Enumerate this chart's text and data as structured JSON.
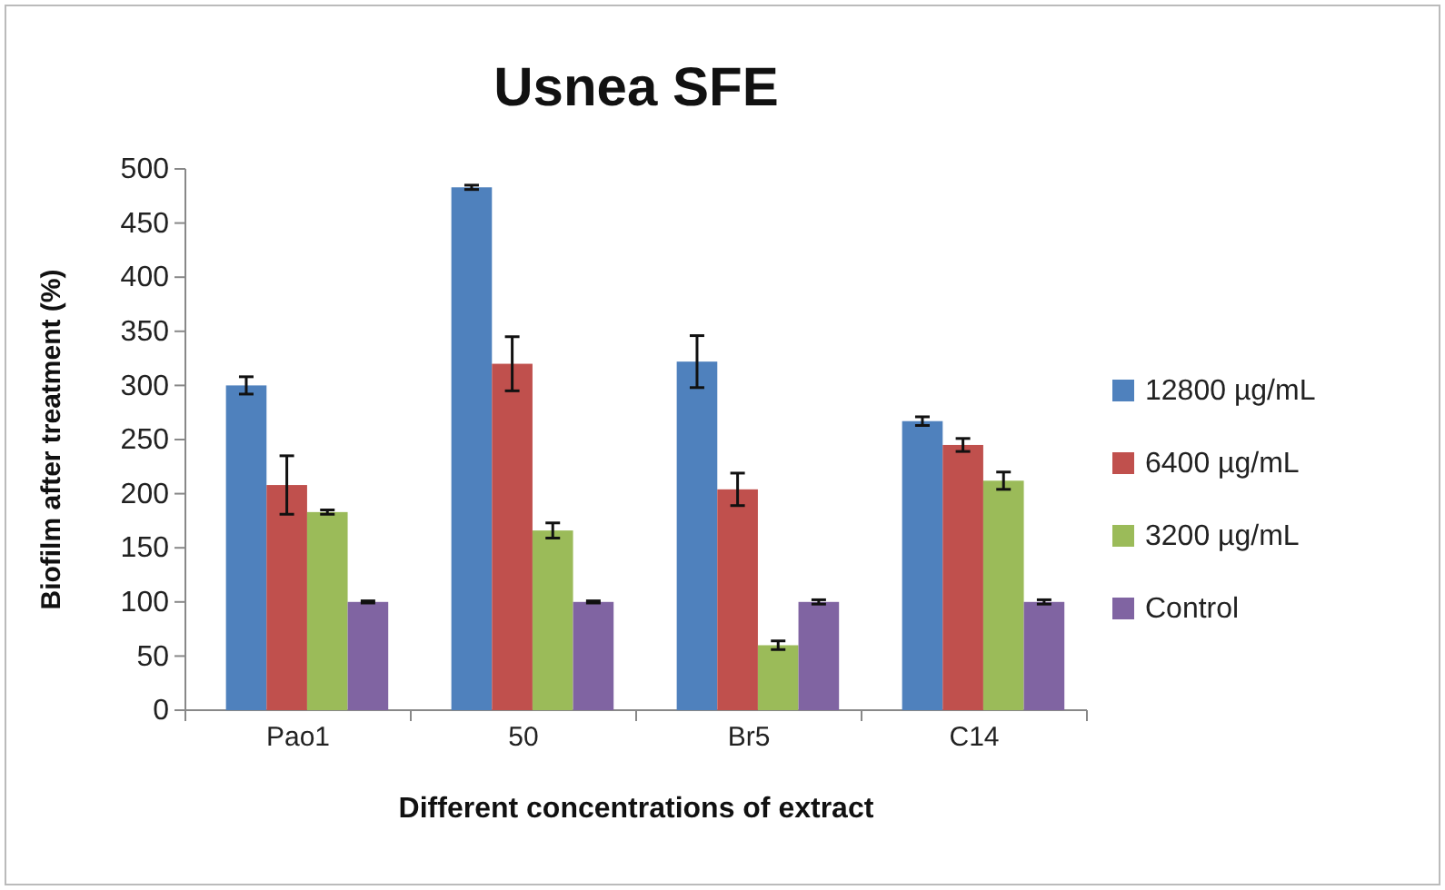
{
  "chart_data": {
    "type": "bar",
    "title": "Usnea SFE",
    "xlabel": "Different concentrations of extract",
    "ylabel": "Biofilm after treatment (%)",
    "categories": [
      "Pao1",
      "50",
      "Br5",
      "C14"
    ],
    "series": [
      {
        "name": "12800 µg/mL",
        "color": "#4f81bd",
        "values": [
          300,
          483,
          322,
          267
        ],
        "errors": [
          8,
          2,
          24,
          4
        ]
      },
      {
        "name": "6400 µg/mL",
        "color": "#c0504d",
        "values": [
          208,
          320,
          204,
          245
        ],
        "errors": [
          27,
          25,
          15,
          6
        ]
      },
      {
        "name": "3200 µg/mL",
        "color": "#9bbb59",
        "values": [
          183,
          166,
          60,
          212
        ],
        "errors": [
          2,
          7,
          4,
          8
        ]
      },
      {
        "name": "Control",
        "color": "#8064a2",
        "values": [
          100,
          100,
          100,
          100
        ],
        "errors": [
          1,
          1,
          2,
          2
        ]
      }
    ],
    "ylim": [
      0,
      500
    ],
    "yticks": [
      0,
      50,
      100,
      150,
      200,
      250,
      300,
      350,
      400,
      450,
      500
    ],
    "legend": "right"
  }
}
